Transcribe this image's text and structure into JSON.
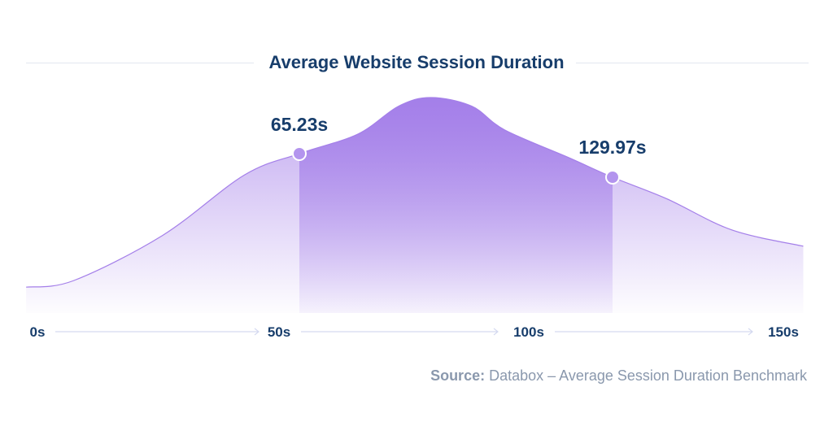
{
  "chart_data": {
    "type": "area",
    "title": "Average Website Session Duration",
    "xlabel": "",
    "ylabel": "",
    "x_ticks": [
      "0s",
      "50s",
      "100s",
      "150s"
    ],
    "xlim": [
      0,
      150
    ],
    "grid": false,
    "curve": {
      "x": [
        -2.1,
        7.4,
        25.3,
        41.7,
        52.8,
        64.5,
        72.7,
        79.2,
        87.4,
        94,
        107,
        115.7,
        126.6,
        139.7,
        154
      ],
      "y": [
        12,
        15,
        36,
        64,
        74,
        83,
        96,
        100,
        96,
        85,
        72,
        63,
        53,
        38.5,
        31
      ]
    },
    "annotations": [
      {
        "label": "65.23s",
        "value": 65.23
      },
      {
        "label": "129.97s",
        "value": 129.97
      }
    ],
    "highlight_range": [
      65.23,
      129.97
    ],
    "colors": {
      "fill": "#a47fe9",
      "line": "#a47fe9",
      "text": "#173d6b"
    }
  },
  "source": {
    "prefix": "Source:",
    "text": " Databox – Average Session Duration Benchmark"
  }
}
